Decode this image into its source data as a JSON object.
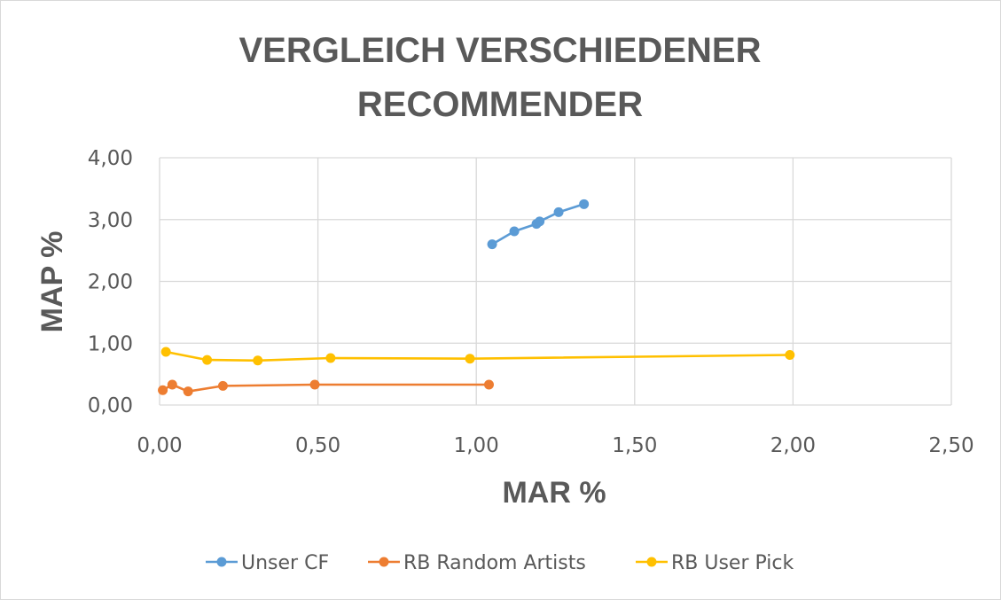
{
  "chart_data": {
    "type": "scatter",
    "title_lines": [
      "VERGLEICH VERSCHIEDENER",
      "RECOMMENDER"
    ],
    "xlabel": "MAR %",
    "ylabel": "MAP %",
    "xlim": [
      0,
      2.5
    ],
    "ylim": [
      0,
      4
    ],
    "x_ticks": [
      "0,00",
      "0,50",
      "1,00",
      "1,50",
      "2,00",
      "2,50"
    ],
    "y_ticks": [
      "0,00",
      "1,00",
      "2,00",
      "3,00",
      "4,00"
    ],
    "grid": true,
    "legend_position": "bottom",
    "series": [
      {
        "name": "Unser CF",
        "color": "#5b9bd5",
        "points": [
          [
            1.05,
            2.6
          ],
          [
            1.12,
            2.81
          ],
          [
            1.19,
            2.93
          ],
          [
            1.2,
            2.97
          ],
          [
            1.26,
            3.12
          ],
          [
            1.34,
            3.25
          ]
        ]
      },
      {
        "name": "RB Random Artists",
        "color": "#ed7d31",
        "points": [
          [
            0.01,
            0.24
          ],
          [
            0.04,
            0.33
          ],
          [
            0.09,
            0.22
          ],
          [
            0.2,
            0.31
          ],
          [
            0.49,
            0.33
          ],
          [
            1.04,
            0.33
          ]
        ]
      },
      {
        "name": "RB User Pick",
        "color": "#ffc000",
        "points": [
          [
            0.02,
            0.86
          ],
          [
            0.15,
            0.73
          ],
          [
            0.31,
            0.72
          ],
          [
            0.54,
            0.76
          ],
          [
            0.98,
            0.75
          ],
          [
            1.99,
            0.81
          ]
        ]
      }
    ]
  }
}
